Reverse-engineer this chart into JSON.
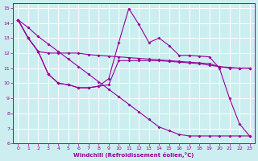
{
  "xlabel": "Windchill (Refroidissement éolien,°C)",
  "background_color": "#cceef0",
  "grid_color": "#aadddd",
  "line_color": "#990099",
  "xlim": [
    -0.5,
    23.5
  ],
  "ylim": [
    6,
    15.3
  ],
  "xticks": [
    0,
    1,
    2,
    3,
    4,
    5,
    6,
    7,
    8,
    9,
    10,
    11,
    12,
    13,
    14,
    15,
    16,
    17,
    18,
    19,
    20,
    21,
    22,
    23
  ],
  "yticks": [
    6,
    7,
    8,
    9,
    10,
    11,
    12,
    13,
    14,
    15
  ],
  "s1_x": [
    0,
    1,
    2,
    3,
    4,
    5,
    6,
    7,
    8,
    9,
    10,
    11,
    12,
    13,
    14,
    15,
    16,
    17,
    18,
    19,
    20,
    21,
    22,
    23
  ],
  "s1_y": [
    14.2,
    13.7,
    13.1,
    12.6,
    12.1,
    11.6,
    11.1,
    10.6,
    10.1,
    9.6,
    9.1,
    8.6,
    8.1,
    7.6,
    7.1,
    6.85,
    6.6,
    6.5,
    6.5,
    6.5,
    6.5,
    6.5,
    6.5,
    6.5
  ],
  "s2_x": [
    0,
    1,
    2,
    3,
    4,
    5,
    6,
    7,
    8,
    9,
    10,
    11,
    12,
    13,
    14,
    15,
    16,
    17,
    18,
    19,
    20,
    21,
    22,
    23
  ],
  "s2_y": [
    14.2,
    13.0,
    12.1,
    10.6,
    10.0,
    9.9,
    9.7,
    9.7,
    9.8,
    10.3,
    12.7,
    14.95,
    13.9,
    12.7,
    13.0,
    12.5,
    11.85,
    11.85,
    11.8,
    11.75,
    11.0,
    9.0,
    7.3,
    6.5
  ],
  "s3_x": [
    0,
    1,
    2,
    3,
    4,
    5,
    6,
    7,
    8,
    9,
    10,
    11,
    12,
    13,
    14,
    15,
    16,
    17,
    18,
    19,
    20,
    21,
    22,
    23
  ],
  "s3_y": [
    14.2,
    13.0,
    12.1,
    12.0,
    12.0,
    12.0,
    12.0,
    11.9,
    11.85,
    11.8,
    11.75,
    11.7,
    11.65,
    11.6,
    11.55,
    11.5,
    11.45,
    11.4,
    11.35,
    11.3,
    11.1,
    11.05,
    11.0,
    11.0
  ],
  "s4_x": [
    0,
    1,
    2,
    3,
    4,
    5,
    6,
    7,
    8,
    9,
    10,
    11,
    12,
    13,
    14,
    15,
    16,
    17,
    18,
    19,
    20,
    21,
    22,
    23
  ],
  "s4_y": [
    14.2,
    13.0,
    12.1,
    10.6,
    10.0,
    9.9,
    9.7,
    9.7,
    9.8,
    9.9,
    11.5,
    11.5,
    11.5,
    11.5,
    11.5,
    11.45,
    11.4,
    11.35,
    11.3,
    11.2,
    11.1,
    11.0,
    11.0,
    11.0
  ]
}
